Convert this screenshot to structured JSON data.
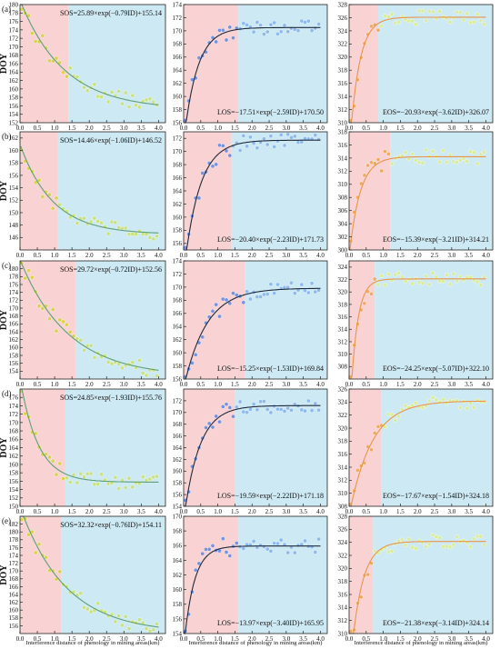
{
  "figure": {
    "row_labels": [
      "(a)",
      "(b)",
      "(c)",
      "(d)",
      "(e)"
    ],
    "ylabel": "DOY",
    "xlabel": "Interference distance of phenology in mining areas(km)",
    "x_ticks": [
      "0.0",
      "0.5",
      "1.0",
      "1.5",
      "2.0",
      "2.5",
      "3.0",
      "3.5",
      "4.0"
    ],
    "colors": {
      "region_near": "#f9d3d3",
      "region_far": "#cde9f4",
      "sos_points": "#c9e27a",
      "sos_points_near": "#d9d14a",
      "sos_curve": "#5e9f78",
      "los_points": "#8ab8ec",
      "los_points_near": "#6f8fe0",
      "los_curve": "#1f2a3a",
      "eos_points": "#d9ed98",
      "eos_points_near": "#f0a85a",
      "eos_curve": "#e8954a"
    }
  },
  "chart_data": [
    {
      "type": "scatter",
      "metric": "SOS",
      "row": 0,
      "equation": "SOS=25.89×exp(−0.79ID)+155.14",
      "a": 25.89,
      "b": 0.79,
      "c": 155.14,
      "sign": 1,
      "ylim": [
        152,
        180
      ],
      "yticks": [
        152,
        154,
        156,
        158,
        160,
        162,
        164,
        166,
        168,
        170,
        172,
        174,
        176,
        178,
        180
      ],
      "xlim": [
        0,
        4.2
      ],
      "boundary_km": 1.4,
      "eq_pos": "top-right"
    },
    {
      "type": "scatter",
      "metric": "LOS",
      "row": 0,
      "equation": "LOS=−17.51×exp(−2.59ID)+170.50",
      "a": 17.51,
      "b": 2.59,
      "c": 170.5,
      "sign": -1,
      "ylim": [
        156,
        174
      ],
      "yticks": [
        156,
        158,
        160,
        162,
        164,
        166,
        168,
        170,
        172,
        174
      ],
      "xlim": [
        0,
        4.2
      ],
      "boundary_km": 1.6,
      "eq_pos": "bottom-right"
    },
    {
      "type": "scatter",
      "metric": "EOS",
      "row": 0,
      "equation": "EOS=−20.93×exp(−3.62ID)+326.07",
      "a": 20.93,
      "b": 3.62,
      "c": 326.07,
      "sign": -1,
      "ylim": [
        310,
        328
      ],
      "yticks": [
        310,
        312,
        314,
        316,
        318,
        320,
        322,
        324,
        326,
        328
      ],
      "xlim": [
        0,
        4.2
      ],
      "boundary_km": 0.85,
      "eq_pos": "bottom-right"
    },
    {
      "type": "scatter",
      "metric": "SOS",
      "row": 1,
      "equation": "SOS=14.46×exp(−1.06ID)+146.52",
      "a": 14.46,
      "b": 1.06,
      "c": 146.52,
      "sign": 1,
      "ylim": [
        144,
        163
      ],
      "yticks": [
        146,
        148,
        150,
        152,
        154,
        156,
        158,
        160,
        162
      ],
      "xlim": [
        0,
        4.2
      ],
      "boundary_km": 1.1,
      "eq_pos": "top-right"
    },
    {
      "type": "scatter",
      "metric": "LOS",
      "row": 1,
      "equation": "LOS=−20.40×exp(−2.23ID)+171.73",
      "a": 20.4,
      "b": 2.23,
      "c": 171.73,
      "sign": -1,
      "ylim": [
        155,
        173
      ],
      "yticks": [
        156,
        158,
        160,
        162,
        164,
        166,
        168,
        170,
        172
      ],
      "xlim": [
        0,
        4.2
      ],
      "boundary_km": 1.4,
      "eq_pos": "bottom-right"
    },
    {
      "type": "scatter",
      "metric": "EOS",
      "row": 1,
      "equation": "EOS=−15.39×exp(−3.21ID)+314.21",
      "a": 15.39,
      "b": 3.21,
      "c": 314.21,
      "sign": -1,
      "ylim": [
        300,
        318
      ],
      "yticks": [
        300,
        302,
        304,
        306,
        308,
        310,
        312,
        314,
        316,
        318
      ],
      "xlim": [
        0,
        4.2
      ],
      "boundary_km": 1.2,
      "eq_pos": "bottom-right"
    },
    {
      "type": "scatter",
      "metric": "SOS",
      "row": 2,
      "equation": "SOS=29.72×exp(−0.72ID)+152.56",
      "a": 29.72,
      "b": 0.72,
      "c": 152.56,
      "sign": 1,
      "ylim": [
        152,
        182
      ],
      "yticks": [
        154,
        156,
        158,
        160,
        162,
        164,
        166,
        168,
        170,
        172,
        174,
        176,
        178,
        180
      ],
      "xlim": [
        0,
        4.2
      ],
      "boundary_km": 1.6,
      "eq_pos": "top-right"
    },
    {
      "type": "scatter",
      "metric": "LOS",
      "row": 2,
      "equation": "LOS=−15.25×exp(−1.53ID)+169.84",
      "a": 15.25,
      "b": 1.53,
      "c": 169.84,
      "sign": -1,
      "ylim": [
        156,
        174
      ],
      "yticks": [
        156,
        158,
        160,
        162,
        164,
        166,
        168,
        170,
        172,
        174
      ],
      "xlim": [
        0,
        4.2
      ],
      "boundary_km": 1.8,
      "eq_pos": "bottom-right"
    },
    {
      "type": "scatter",
      "metric": "EOS",
      "row": 2,
      "equation": "EOS=−24.25×exp(−5.07ID)+322.10",
      "a": 24.25,
      "b": 5.07,
      "c": 322.1,
      "sign": -1,
      "ylim": [
        306,
        325
      ],
      "yticks": [
        308,
        310,
        312,
        314,
        316,
        318,
        320,
        322,
        324
      ],
      "xlim": [
        0,
        4.2
      ],
      "boundary_km": 0.75,
      "eq_pos": "bottom-right"
    },
    {
      "type": "scatter",
      "metric": "SOS",
      "row": 3,
      "equation": "SOS=24.85×exp(−1.93ID)+155.76",
      "a": 24.85,
      "b": 1.93,
      "c": 155.76,
      "sign": 1,
      "ylim": [
        150,
        178
      ],
      "yticks": [
        150,
        152,
        154,
        156,
        158,
        160,
        162,
        164,
        166,
        168,
        170,
        172,
        174,
        176
      ],
      "xlim": [
        0,
        4.2
      ],
      "boundary_km": 1.3,
      "eq_pos": "top-right"
    },
    {
      "type": "scatter",
      "metric": "LOS",
      "row": 3,
      "equation": "LOS=−19.59×exp(−2.22ID)+171.18",
      "a": 19.59,
      "b": 2.22,
      "c": 171.18,
      "sign": -1,
      "ylim": [
        154,
        174
      ],
      "yticks": [
        154,
        156,
        158,
        160,
        162,
        164,
        166,
        168,
        170,
        172
      ],
      "xlim": [
        0,
        4.2
      ],
      "boundary_km": 1.5,
      "eq_pos": "bottom-right"
    },
    {
      "type": "scatter",
      "metric": "EOS",
      "row": 3,
      "equation": "EOS=−17.67×exp(−1.54ID)+324.18",
      "a": 17.67,
      "b": 1.54,
      "c": 324.18,
      "sign": -1,
      "ylim": [
        308,
        326
      ],
      "yticks": [
        308,
        310,
        312,
        314,
        316,
        318,
        320,
        322,
        324,
        326
      ],
      "xlim": [
        0,
        4.2
      ],
      "boundary_km": 0.95,
      "eq_pos": "bottom-right"
    },
    {
      "type": "scatter",
      "metric": "SOS",
      "row": 4,
      "equation": "SOS=32.32×exp(−0.76ID)+154.11",
      "a": 32.32,
      "b": 0.76,
      "c": 154.11,
      "sign": 1,
      "ylim": [
        154,
        184
      ],
      "yticks": [
        156,
        158,
        160,
        162,
        164,
        166,
        168,
        170,
        172,
        174,
        176,
        178,
        180,
        182
      ],
      "xlim": [
        0,
        4.2
      ],
      "boundary_km": 1.2,
      "eq_pos": "top-right"
    },
    {
      "type": "scatter",
      "metric": "LOS",
      "row": 4,
      "equation": "LOS=−13.97×exp(−3.40ID)+165.95",
      "a": 13.97,
      "b": 3.4,
      "c": 165.95,
      "sign": -1,
      "ylim": [
        154,
        170
      ],
      "yticks": [
        154,
        156,
        158,
        160,
        162,
        164,
        166,
        168,
        170
      ],
      "xlim": [
        0,
        4.2
      ],
      "boundary_km": 1.6,
      "eq_pos": "bottom-right"
    },
    {
      "type": "scatter",
      "metric": "EOS",
      "row": 4,
      "equation": "EOS=−21.38×exp(−3.14ID)+324.14",
      "a": 21.38,
      "b": 3.14,
      "c": 324.14,
      "sign": -1,
      "ylim": [
        310,
        328
      ],
      "yticks": [
        310,
        312,
        314,
        316,
        318,
        320,
        322,
        324,
        326,
        328
      ],
      "xlim": [
        0,
        4.2
      ],
      "boundary_km": 0.7,
      "eq_pos": "bottom-right"
    }
  ]
}
